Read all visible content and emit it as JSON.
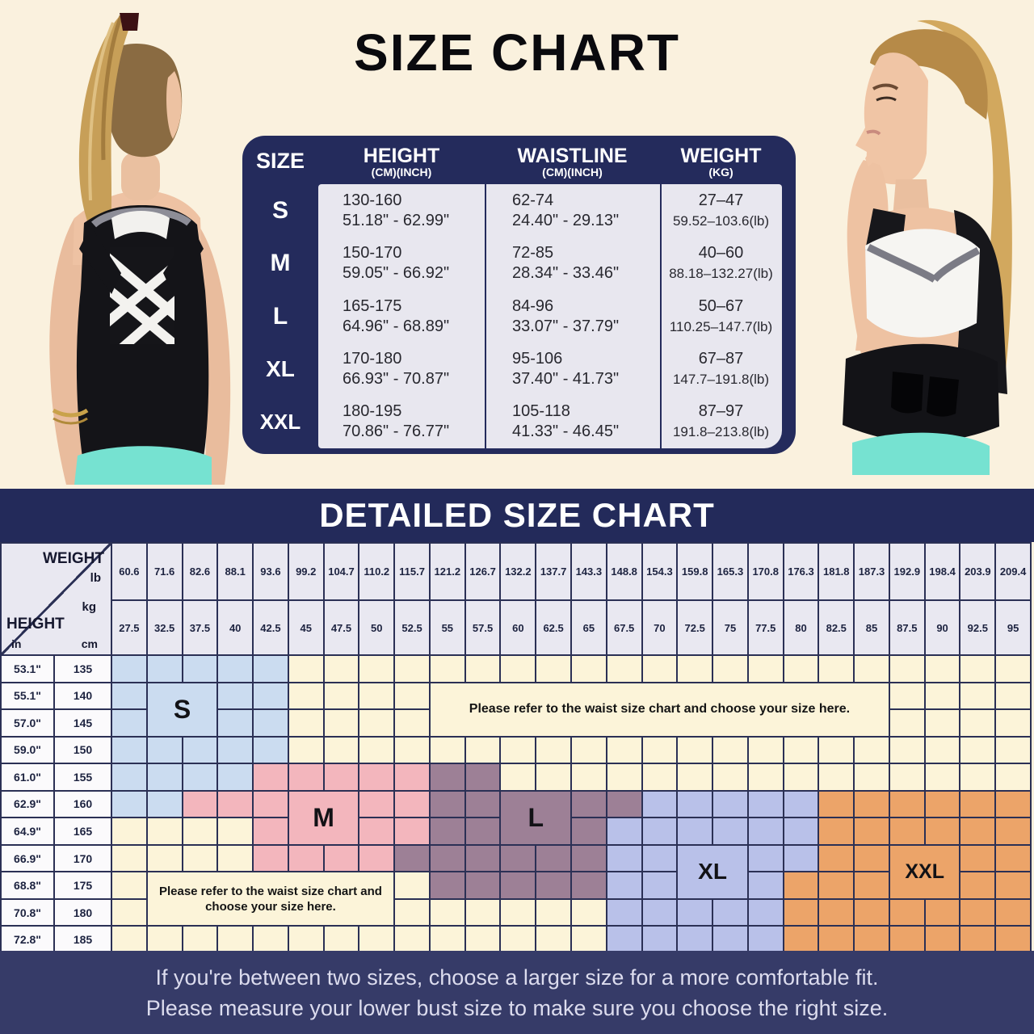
{
  "page_title": "SIZE CHART",
  "size_table": {
    "col_headers": {
      "size": "SIZE",
      "height": "HEIGHT",
      "height_sub": "(CM)(INCH)",
      "waistline": "WAISTLINE",
      "waistline_sub": "(CM)(INCH)",
      "weight": "WEIGHT",
      "weight_sub": "(KG)"
    },
    "rows": [
      {
        "size": "S",
        "height_cm": "130-160",
        "height_in": "51.18\" - 62.99\"",
        "waist_cm": "62-74",
        "waist_in": "24.40\" - 29.13\"",
        "weight_kg": "27–47",
        "weight_lb": "59.52–103.6(lb)"
      },
      {
        "size": "M",
        "height_cm": "150-170",
        "height_in": "59.05\" - 66.92\"",
        "waist_cm": "72-85",
        "waist_in": "28.34\" - 33.46\"",
        "weight_kg": "40–60",
        "weight_lb": "88.18–132.27(lb)"
      },
      {
        "size": "L",
        "height_cm": "165-175",
        "height_in": "64.96\" - 68.89\"",
        "waist_cm": "84-96",
        "waist_in": "33.07\" - 37.79\"",
        "weight_kg": "50–67",
        "weight_lb": "110.25–147.7(lb)"
      },
      {
        "size": "XL",
        "height_cm": "170-180",
        "height_in": "66.93\" - 70.87\"",
        "waist_cm": "95-106",
        "waist_in": "37.40\" - 41.73\"",
        "weight_kg": "67–87",
        "weight_lb": "147.7–191.8(lb)"
      },
      {
        "size": "XXL",
        "height_cm": "180-195",
        "height_in": "70.86\" - 76.77\"",
        "waist_cm": "105-118",
        "waist_in": "41.33\" - 46.45\"",
        "weight_kg": "87–97",
        "weight_lb": "191.8–213.8(lb)"
      }
    ]
  },
  "detailed": {
    "title": "DETAILED SIZE CHART",
    "corner": {
      "weight": "WEIGHT",
      "lb": "lb",
      "kg": "kg",
      "height": "HEIGHT",
      "in": "in",
      "cm": "cm"
    },
    "note_top": "Please refer to the waist size chart and choose your size here.",
    "note_bottom": "Please refer to the waist size chart and choose your size here.",
    "footer_line1": "If you're between two sizes, choose a larger size for a more comfortable fit.",
    "footer_line2": "Please measure your lower bust size to make sure you choose the right size."
  },
  "chart_data": {
    "type": "table",
    "title": "DETAILED SIZE CHART",
    "xlabel": "WEIGHT (lb / kg)",
    "ylabel": "HEIGHT (in / cm)",
    "weights_lb": [
      60.6,
      71.6,
      82.6,
      88.1,
      93.6,
      99.2,
      104.7,
      110.2,
      115.7,
      121.2,
      126.7,
      132.2,
      137.7,
      143.3,
      148.8,
      154.3,
      159.8,
      165.3,
      170.8,
      176.3,
      181.8,
      187.3,
      192.9,
      198.4,
      203.9,
      209.4
    ],
    "weights_kg": [
      27.5,
      32.5,
      37.5,
      40,
      42.5,
      45,
      47.5,
      50,
      52.5,
      55,
      57.5,
      60,
      62.5,
      65,
      67.5,
      70,
      72.5,
      75,
      77.5,
      80,
      82.5,
      85,
      87.5,
      90,
      92.5,
      95
    ],
    "heights_in": [
      "53.1\"",
      "55.1\"",
      "57.0\"",
      "59.0\"",
      "61.0\"",
      "62.9\"",
      "64.9\"",
      "66.9\"",
      "68.8\"",
      "70.8\"",
      "72.8\""
    ],
    "heights_cm": [
      135,
      140,
      145,
      150,
      155,
      160,
      165,
      170,
      175,
      180,
      185
    ],
    "sizes": [
      {
        "name": "S",
        "color": "#cbdcf0",
        "label_cell": {
          "row": 140,
          "col": 2,
          "rowspan": 2,
          "colspan": 2
        },
        "cells": [
          [
            135,
            1,
            5
          ],
          [
            140,
            1,
            5
          ],
          [
            145,
            1,
            5
          ],
          [
            150,
            1,
            5
          ],
          [
            155,
            1,
            4
          ],
          [
            160,
            1,
            2
          ]
        ]
      },
      {
        "name": "M",
        "color": "#f3b6bd",
        "label_cell": {
          "row": 160,
          "col": 6,
          "rowspan": 2,
          "colspan": 2
        },
        "cells": [
          [
            155,
            5,
            9
          ],
          [
            160,
            3,
            9
          ],
          [
            165,
            5,
            9
          ],
          [
            170,
            5,
            8
          ]
        ]
      },
      {
        "name": "L",
        "color": "#9d8096",
        "label_cell": {
          "row": 160,
          "col": 12,
          "rowspan": 2,
          "colspan": 2
        },
        "cells": [
          [
            155,
            10,
            11
          ],
          [
            160,
            10,
            15
          ],
          [
            165,
            10,
            14
          ],
          [
            170,
            9,
            14
          ],
          [
            175,
            10,
            14
          ]
        ]
      },
      {
        "name": "XL",
        "color": "#b9c1e9",
        "label_cell": {
          "row": 170,
          "col": 17,
          "rowspan": 2,
          "colspan": 2
        },
        "cells": [
          [
            160,
            16,
            20
          ],
          [
            165,
            15,
            20
          ],
          [
            170,
            15,
            20
          ],
          [
            175,
            15,
            19
          ],
          [
            180,
            15,
            19
          ],
          [
            185,
            15,
            19
          ]
        ]
      },
      {
        "name": "XXL",
        "color": "#eca469",
        "label_cell": {
          "row": 170,
          "col": 23,
          "rowspan": 2,
          "colspan": 2
        },
        "cells": [
          [
            160,
            21,
            26
          ],
          [
            165,
            21,
            26
          ],
          [
            170,
            21,
            26
          ],
          [
            175,
            20,
            26
          ],
          [
            180,
            20,
            26
          ],
          [
            185,
            20,
            26
          ]
        ]
      }
    ],
    "notes": [
      {
        "row": 140,
        "col": 10,
        "rowspan": 2,
        "colspan": 13,
        "text_key": "note_top",
        "wrap": false
      },
      {
        "row": 175,
        "col": 2,
        "rowspan": 2,
        "colspan": 7,
        "text_key": "note_bottom",
        "wrap": true
      }
    ]
  },
  "colors": {
    "page_bg": "#faf1de",
    "grid_cream": "#fcf4d9",
    "navy": "#242b5c",
    "grid_line": "#2b3055",
    "footer_band": "#363b68",
    "header_cell": "#e9e8f1",
    "height_cell": "#fbfafc",
    "table_cell": "#e8e7ef",
    "footer_text": "#dcdcee"
  }
}
